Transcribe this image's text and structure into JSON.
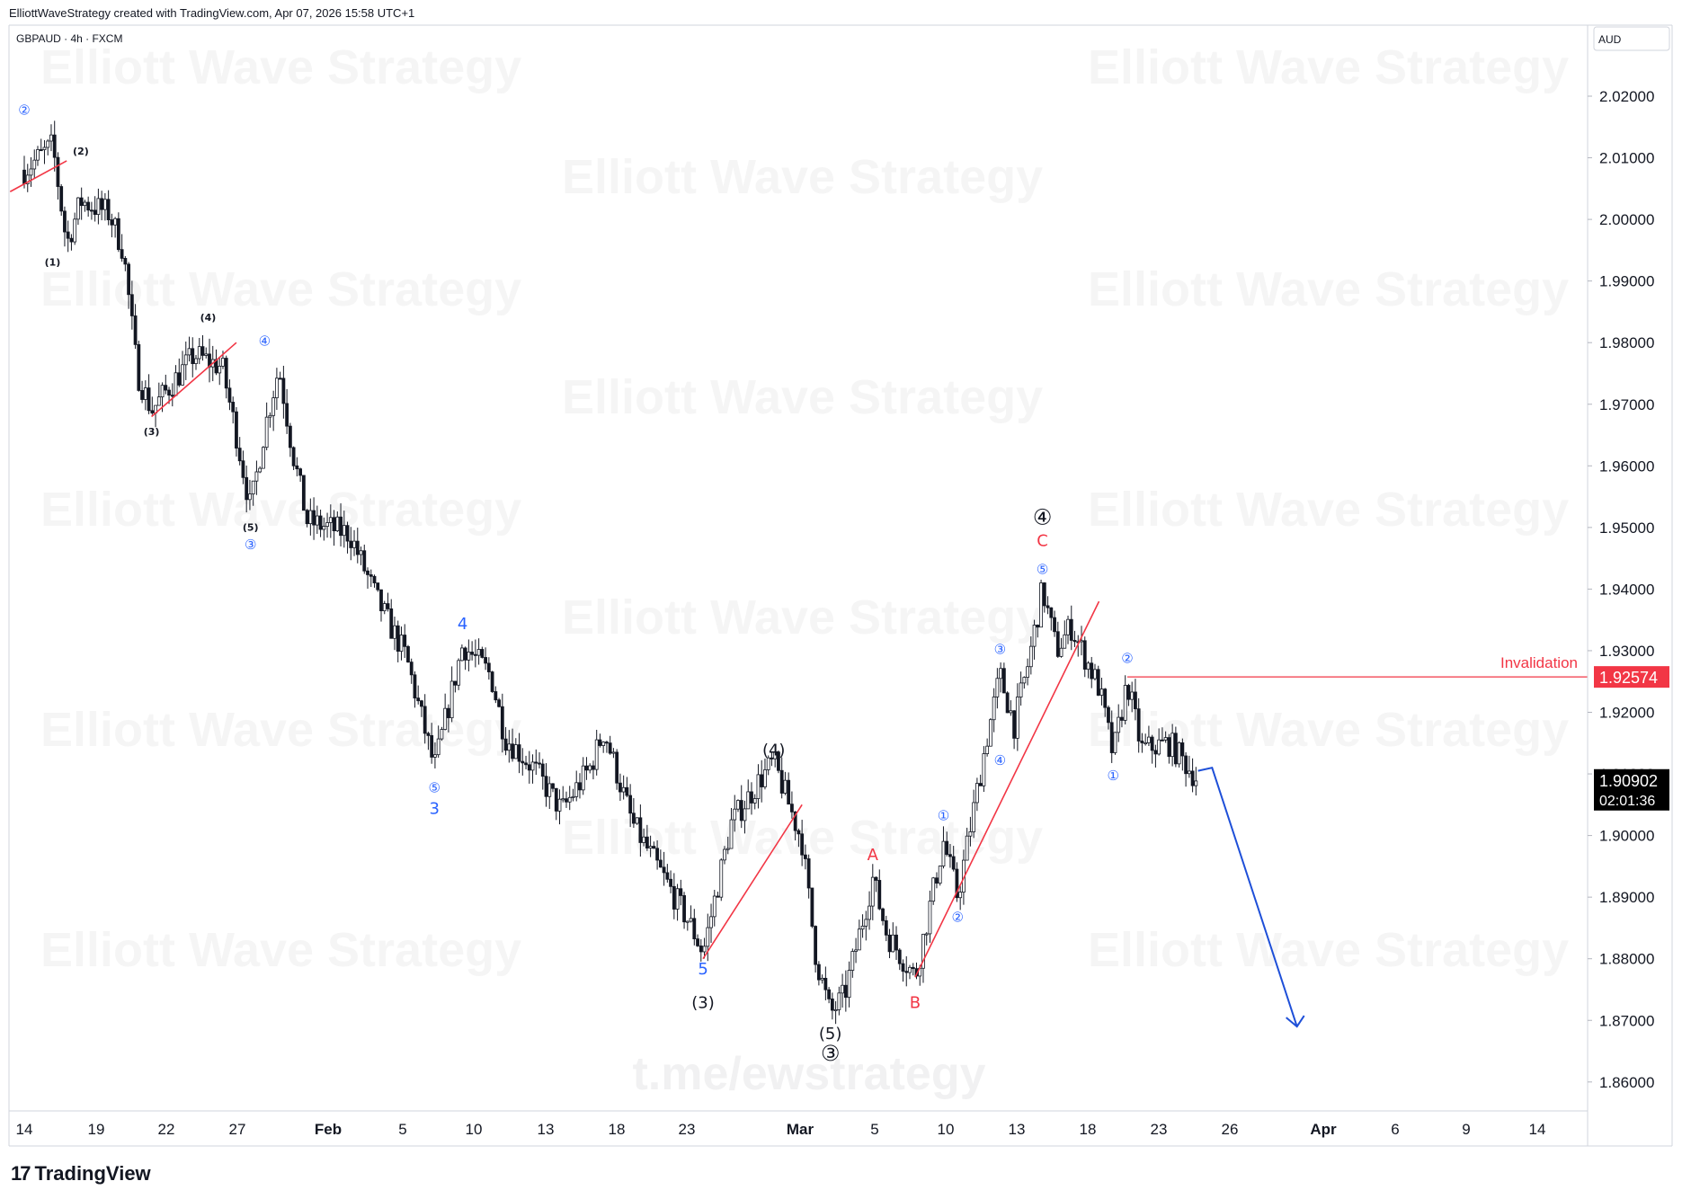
{
  "header": {
    "credit": "ElliottWaveStrategy created with TradingView.com, Apr 07, 2026 15:58 UTC+1",
    "symbol": "GBPAUD · 4h · FXCM",
    "brand": "TradingView",
    "logo_icon": "tradingview-logo-icon"
  },
  "watermark": {
    "text": "Elliott Wave Strategy",
    "link": "t.me/ewstrategy"
  },
  "colors": {
    "candle": "#131722",
    "trendline": "#f23645",
    "projection": "#1e4fd8",
    "blue_label": "#2962ff",
    "red_label": "#f23645",
    "price_tag": "#000000",
    "invalidation_tag": "#f23645"
  },
  "chart_data": {
    "type": "candlestick",
    "currency": "AUD",
    "ylim": [
      1.855,
      2.03
    ],
    "y_ticks": [
      "2.02000",
      "2.01000",
      "2.00000",
      "1.99000",
      "1.98000",
      "1.97000",
      "1.96000",
      "1.95000",
      "1.94000",
      "1.93000",
      "1.92000",
      "1.91000",
      "1.90000",
      "1.89000",
      "1.88000",
      "1.87000",
      "1.86000"
    ],
    "x_ticks": [
      "14",
      "19",
      "22",
      "27",
      "Feb",
      "5",
      "10",
      "13",
      "18",
      "23",
      "Mar",
      "5",
      "10",
      "13",
      "18",
      "23",
      "26",
      "Apr",
      "6",
      "9",
      "14"
    ],
    "x_tick_bold": [
      "Feb",
      "Mar",
      "Apr"
    ],
    "price_path": [
      {
        "date": "2026-01-14",
        "price": 2.008
      },
      {
        "date": "2026-01-16",
        "price": 2.012
      },
      {
        "date": "2026-01-17",
        "price": 1.996
      },
      {
        "date": "2026-01-18",
        "price": 2.003
      },
      {
        "date": "2026-01-20",
        "price": 2.001
      },
      {
        "date": "2026-01-21",
        "price": 1.995
      },
      {
        "date": "2026-01-22",
        "price": 1.975
      },
      {
        "date": "2026-01-23",
        "price": 1.969
      },
      {
        "date": "2026-01-26",
        "price": 1.978
      },
      {
        "date": "2026-01-28",
        "price": 1.976
      },
      {
        "date": "2026-01-29",
        "price": 1.965
      },
      {
        "date": "2026-01-30",
        "price": 1.953
      },
      {
        "date": "2026-01-31",
        "price": 1.966
      },
      {
        "date": "2026-02-01",
        "price": 1.976
      },
      {
        "date": "2026-02-02",
        "price": 1.962
      },
      {
        "date": "2026-02-03",
        "price": 1.951
      },
      {
        "date": "2026-02-06",
        "price": 1.949
      },
      {
        "date": "2026-02-08",
        "price": 1.938
      },
      {
        "date": "2026-02-10",
        "price": 1.929
      },
      {
        "date": "2026-02-12",
        "price": 1.911
      },
      {
        "date": "2026-02-14",
        "price": 1.931
      },
      {
        "date": "2026-02-16",
        "price": 1.926
      },
      {
        "date": "2026-02-17",
        "price": 1.916
      },
      {
        "date": "2026-02-19",
        "price": 1.911
      },
      {
        "date": "2026-02-21",
        "price": 1.904
      },
      {
        "date": "2026-02-23",
        "price": 1.911
      },
      {
        "date": "2026-02-24",
        "price": 1.917
      },
      {
        "date": "2026-02-26",
        "price": 1.902
      },
      {
        "date": "2026-02-28",
        "price": 1.894
      },
      {
        "date": "2026-03-02",
        "price": 1.886
      },
      {
        "date": "2026-03-03",
        "price": 1.881
      },
      {
        "date": "2026-03-05",
        "price": 1.902
      },
      {
        "date": "2026-03-07",
        "price": 1.909
      },
      {
        "date": "2026-03-08",
        "price": 1.912
      },
      {
        "date": "2026-03-10",
        "price": 1.899
      },
      {
        "date": "2026-03-11",
        "price": 1.88
      },
      {
        "date": "2026-03-12",
        "price": 1.871
      },
      {
        "date": "2026-03-13",
        "price": 1.874
      },
      {
        "date": "2026-03-15",
        "price": 1.893
      },
      {
        "date": "2026-03-16",
        "price": 1.884
      },
      {
        "date": "2026-03-18",
        "price": 1.877
      },
      {
        "date": "2026-03-20",
        "price": 1.899
      },
      {
        "date": "2026-03-21",
        "price": 1.89
      },
      {
        "date": "2026-03-23",
        "price": 1.915
      },
      {
        "date": "2026-03-24",
        "price": 1.926
      },
      {
        "date": "2026-03-25",
        "price": 1.918
      },
      {
        "date": "2026-03-26",
        "price": 1.928
      },
      {
        "date": "2026-03-27",
        "price": 1.94
      },
      {
        "date": "2026-03-28",
        "price": 1.93
      },
      {
        "date": "2026-03-29",
        "price": 1.934
      },
      {
        "date": "2026-03-31",
        "price": 1.924
      },
      {
        "date": "2026-04-01",
        "price": 1.913
      },
      {
        "date": "2026-04-02",
        "price": 1.925
      },
      {
        "date": "2026-04-03",
        "price": 1.914
      },
      {
        "date": "2026-04-05",
        "price": 1.915
      },
      {
        "date": "2026-04-06",
        "price": 1.912
      },
      {
        "date": "2026-04-07",
        "price": 1.909
      }
    ],
    "current_price": "1.90902",
    "countdown": "02:01:36",
    "invalidation": {
      "price": 1.92574,
      "label": "Invalidation",
      "value_label": "1.92574"
    },
    "wave_labels": [
      {
        "text": "②",
        "date": "2026-01-14",
        "price": 2.017,
        "color": "blue",
        "size": "small"
      },
      {
        "text": "(2)",
        "date": "2026-01-18",
        "price": 2.0105,
        "color": "black",
        "size": "tiny"
      },
      {
        "text": "(1)",
        "date": "2026-01-16",
        "price": 1.9925,
        "color": "black",
        "size": "tiny"
      },
      {
        "text": "(4)",
        "date": "2026-01-27",
        "price": 1.9835,
        "color": "black",
        "size": "tiny"
      },
      {
        "text": "④",
        "date": "2026-01-31",
        "price": 1.9795,
        "color": "blue",
        "size": "small"
      },
      {
        "text": "(3)",
        "date": "2026-01-23",
        "price": 1.965,
        "color": "black",
        "size": "tiny"
      },
      {
        "text": "(5)",
        "date": "2026-01-30",
        "price": 1.9495,
        "color": "black",
        "size": "tiny"
      },
      {
        "text": "③",
        "date": "2026-01-30",
        "price": 1.9465,
        "color": "blue",
        "size": "small"
      },
      {
        "text": "4",
        "date": "2026-02-14",
        "price": 1.9335,
        "color": "blue",
        "size": "medium"
      },
      {
        "text": "⑤",
        "date": "2026-02-12",
        "price": 1.907,
        "color": "blue",
        "size": "small"
      },
      {
        "text": "3",
        "date": "2026-02-12",
        "price": 1.9035,
        "color": "blue",
        "size": "medium"
      },
      {
        "text": "(4)",
        "date": "2026-03-08",
        "price": 1.913,
        "color": "black",
        "size": "medium"
      },
      {
        "text": "5",
        "date": "2026-03-03",
        "price": 1.8775,
        "color": "blue",
        "size": "medium"
      },
      {
        "text": "(3)",
        "date": "2026-03-03",
        "price": 1.872,
        "color": "black",
        "size": "medium"
      },
      {
        "text": "(5)",
        "date": "2026-03-12",
        "price": 1.867,
        "color": "black",
        "size": "medium"
      },
      {
        "text": "③",
        "date": "2026-03-12",
        "price": 1.8635,
        "color": "black",
        "size": "large"
      },
      {
        "text": "A",
        "date": "2026-03-15",
        "price": 1.896,
        "color": "red",
        "size": "medium"
      },
      {
        "text": "B",
        "date": "2026-03-18",
        "price": 1.872,
        "color": "red",
        "size": "medium"
      },
      {
        "text": "①",
        "date": "2026-03-20",
        "price": 1.9025,
        "color": "blue",
        "size": "small"
      },
      {
        "text": "②",
        "date": "2026-03-21",
        "price": 1.886,
        "color": "blue",
        "size": "small"
      },
      {
        "text": "③",
        "date": "2026-03-24",
        "price": 1.9295,
        "color": "blue",
        "size": "small"
      },
      {
        "text": "④",
        "date": "2026-03-24",
        "price": 1.9115,
        "color": "blue",
        "size": "small"
      },
      {
        "text": "④",
        "date": "2026-03-27",
        "price": 1.9505,
        "color": "black",
        "size": "large"
      },
      {
        "text": "C",
        "date": "2026-03-27",
        "price": 1.947,
        "color": "red",
        "size": "medium"
      },
      {
        "text": "⑤",
        "date": "2026-03-27",
        "price": 1.9425,
        "color": "blue",
        "size": "small"
      },
      {
        "text": "②",
        "date": "2026-04-02",
        "price": 1.928,
        "color": "blue",
        "size": "small"
      },
      {
        "text": "①",
        "date": "2026-04-01",
        "price": 1.909,
        "color": "blue",
        "size": "small"
      }
    ],
    "trendlines": [
      {
        "from": {
          "date": "2026-01-13",
          "price": 2.0045
        },
        "to": {
          "date": "2026-01-17",
          "price": 2.0095
        }
      },
      {
        "from": {
          "date": "2026-01-23",
          "price": 1.968
        },
        "to": {
          "date": "2026-01-29",
          "price": 1.98
        }
      },
      {
        "from": {
          "date": "2026-03-03",
          "price": 1.88
        },
        "to": {
          "date": "2026-03-10",
          "price": 1.905
        }
      },
      {
        "from": {
          "date": "2026-03-18",
          "price": 1.877
        },
        "to": {
          "date": "2026-03-31",
          "price": 1.938
        }
      }
    ],
    "projection": [
      {
        "date": "2026-04-07",
        "price": 1.9105
      },
      {
        "date": "2026-04-08",
        "price": 1.911
      },
      {
        "date": "2026-04-14",
        "price": 1.869
      }
    ]
  }
}
